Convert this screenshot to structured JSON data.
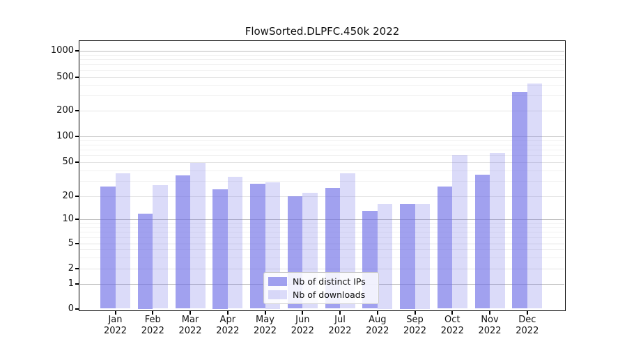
{
  "chart_data": {
    "type": "bar",
    "title": "FlowSorted.DLPFC.450k 2022",
    "categories": [
      "Jan 2022",
      "Feb 2022",
      "Mar 2022",
      "Apr 2022",
      "May 2022",
      "Jun 2022",
      "Jul 2022",
      "Aug 2022",
      "Sep 2022",
      "Oct 2022",
      "Nov 2022",
      "Dec 2022"
    ],
    "series": [
      {
        "name": "Nb of distinct IPs",
        "color": "rgba(110,110,230,0.65)",
        "values": [
          26,
          12,
          35,
          24,
          28,
          20,
          25,
          13,
          16,
          26,
          36,
          330
        ]
      },
      {
        "name": "Nb of downloads",
        "color": "rgba(110,110,230,0.25)",
        "values": [
          37,
          27,
          49,
          34,
          29,
          22,
          37,
          16,
          16,
          60,
          64,
          420
        ]
      }
    ],
    "xlabel": "",
    "ylabel": "",
    "y_axis": {
      "scale": "log-like with zero baseline",
      "ticks": [
        0,
        1,
        2,
        5,
        10,
        20,
        50,
        100,
        200,
        500,
        1000
      ],
      "minor_ticks": [
        3,
        4,
        6,
        7,
        8,
        9,
        30,
        40,
        60,
        70,
        80,
        90,
        300,
        400,
        600,
        700,
        800,
        900
      ],
      "ylim": [
        0,
        1280
      ]
    },
    "grid": true,
    "legend_position": "lower center inside plot",
    "colors": {
      "bar_base": "#6e6ee6",
      "grid_major_power10": "#bbbbbb",
      "grid_major_other": "#e3e3e3",
      "grid_minor": "#f1f1f1",
      "spine": "#000000",
      "text": "#111111",
      "legend_border": "#cccccc"
    }
  }
}
